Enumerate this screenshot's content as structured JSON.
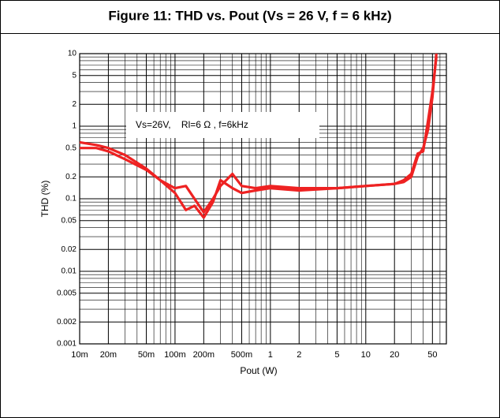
{
  "chart_data": {
    "type": "line",
    "title": "Figure 11: THD vs. Pout (Vs = 26 V, f = 6 kHz)",
    "xlabel": "Pout (W)",
    "ylabel": "THD (%)",
    "annotation": "Vs=26V,    Rl=6 Ω , f=6kHz",
    "xscale": "log",
    "yscale": "log",
    "grid": true,
    "x": [
      0.01,
      0.015,
      0.02,
      0.03,
      0.05,
      0.07,
      0.1,
      0.13,
      0.16,
      0.2,
      0.25,
      0.3,
      0.4,
      0.5,
      0.7,
      1,
      2,
      5,
      10,
      20,
      25,
      30,
      35,
      40,
      45,
      50,
      55
    ],
    "series": [
      {
        "color": "#ee2222",
        "values": [
          0.6,
          0.55,
          0.5,
          0.4,
          0.26,
          0.18,
          0.14,
          0.15,
          0.1,
          0.065,
          0.1,
          0.15,
          0.22,
          0.15,
          0.14,
          0.15,
          0.14,
          0.14,
          0.15,
          0.16,
          0.18,
          0.22,
          0.42,
          0.45,
          1.2,
          3,
          9
        ]
      },
      {
        "color": "#ee2222",
        "values": [
          0.5,
          0.5,
          0.45,
          0.35,
          0.25,
          0.18,
          0.12,
          0.07,
          0.08,
          0.055,
          0.09,
          0.18,
          0.14,
          0.12,
          0.13,
          0.14,
          0.13,
          0.14,
          0.15,
          0.16,
          0.17,
          0.2,
          0.38,
          0.5,
          0.9,
          2.5,
          10
        ]
      }
    ],
    "xlim": [
      0.01,
      70
    ],
    "ylim": [
      0.001,
      10
    ],
    "xticks": [
      {
        "value": 0.01,
        "label": "10m"
      },
      {
        "value": 0.02,
        "label": "20m"
      },
      {
        "value": 0.05,
        "label": "50m"
      },
      {
        "value": 0.1,
        "label": "100m"
      },
      {
        "value": 0.2,
        "label": "200m"
      },
      {
        "value": 0.5,
        "label": "500m"
      },
      1,
      2,
      5,
      10,
      20,
      50
    ],
    "yticks": [
      10,
      5,
      2,
      1,
      0.5,
      0.2,
      0.1,
      0.05,
      0.02,
      0.01,
      0.005,
      0.002,
      0.001
    ],
    "x_minor_ticks": [
      0.03,
      0.04,
      0.06,
      0.07,
      0.08,
      0.09,
      0.3,
      0.4,
      0.6,
      0.7,
      0.8,
      0.9,
      3,
      4,
      6,
      7,
      8,
      9,
      30,
      40,
      60,
      70
    ],
    "y_minor_ticks": [
      0.003,
      0.004,
      0.006,
      0.007,
      0.008,
      0.009,
      0.03,
      0.04,
      0.06,
      0.07,
      0.08,
      0.09,
      0.3,
      0.4,
      0.6,
      0.7,
      0.8,
      0.9,
      3,
      4,
      6,
      7,
      8,
      9
    ]
  }
}
